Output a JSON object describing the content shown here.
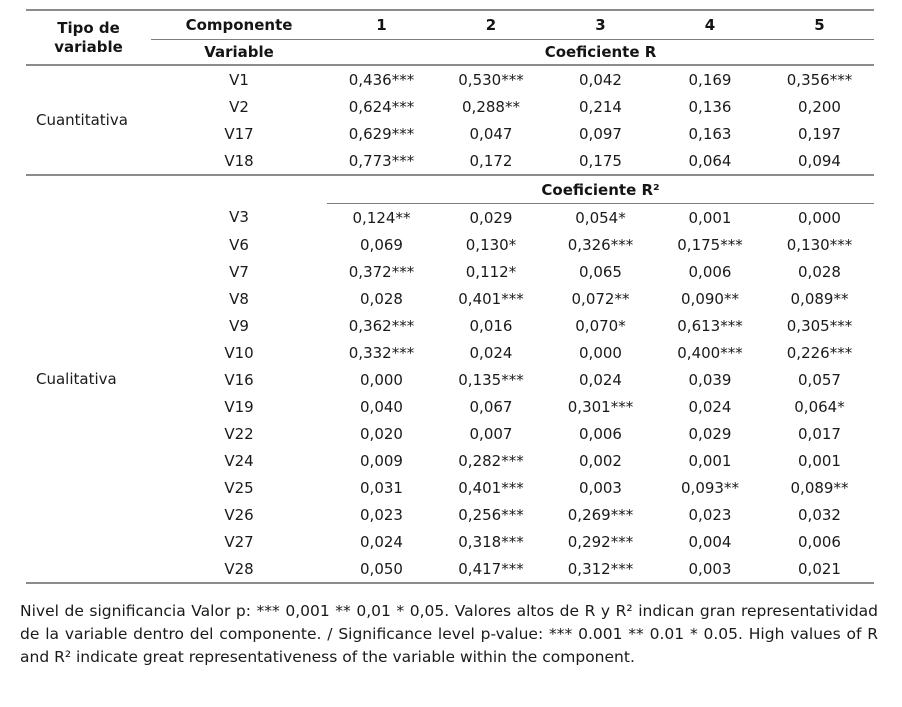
{
  "page": {
    "background": "#ffffff",
    "text_color": "#1a1a1a",
    "rule_color": "#8c8c8c"
  },
  "table": {
    "header": {
      "type_col": "Tipo de variable",
      "component_col": "Componente",
      "components": [
        "1",
        "2",
        "3",
        "4",
        "5"
      ],
      "variable_col": "Variable",
      "coef_r": "Coeficiente R"
    },
    "sections": [
      {
        "type_label": "Cuantitativa",
        "coef_header": null,
        "rows": [
          {
            "variable": "V1",
            "values": [
              "0,436***",
              "0,530***",
              "0,042",
              "0,169",
              "0,356***"
            ]
          },
          {
            "variable": "V2",
            "values": [
              "0,624***",
              "0,288**",
              "0,214",
              "0,136",
              "0,200"
            ]
          },
          {
            "variable": "V17",
            "values": [
              "0,629***",
              "0,047",
              "0,097",
              "0,163",
              "0,197"
            ]
          },
          {
            "variable": "V18",
            "values": [
              "0,773***",
              "0,172",
              "0,175",
              "0,064",
              "0,094"
            ]
          }
        ]
      },
      {
        "type_label": "Cualitativa",
        "coef_header": "Coeficiente R²",
        "rows": [
          {
            "variable": "V3",
            "values": [
              "0,124**",
              "0,029",
              "0,054*",
              "0,001",
              "0,000"
            ]
          },
          {
            "variable": "V6",
            "values": [
              "0,069",
              "0,130*",
              "0,326***",
              "0,175***",
              "0,130***"
            ]
          },
          {
            "variable": "V7",
            "values": [
              "0,372***",
              "0,112*",
              "0,065",
              "0,006",
              "0,028"
            ]
          },
          {
            "variable": "V8",
            "values": [
              "0,028",
              "0,401***",
              "0,072**",
              "0,090**",
              "0,089**"
            ]
          },
          {
            "variable": "V9",
            "values": [
              "0,362***",
              "0,016",
              "0,070*",
              "0,613***",
              "0,305***"
            ]
          },
          {
            "variable": "V10",
            "values": [
              "0,332***",
              "0,024",
              "0,000",
              "0,400***",
              "0,226***"
            ]
          },
          {
            "variable": "V16",
            "values": [
              "0,000",
              "0,135***",
              "0,024",
              "0,039",
              "0,057"
            ]
          },
          {
            "variable": "V19",
            "values": [
              "0,040",
              "0,067",
              "0,301***",
              "0,024",
              "0,064*"
            ]
          },
          {
            "variable": "V22",
            "values": [
              "0,020",
              "0,007",
              "0,006",
              "0,029",
              "0,017"
            ]
          },
          {
            "variable": "V24",
            "values": [
              "0,009",
              "0,282***",
              "0,002",
              "0,001",
              "0,001"
            ]
          },
          {
            "variable": "V25",
            "values": [
              "0,031",
              "0,401***",
              "0,003",
              "0,093**",
              "0,089**"
            ]
          },
          {
            "variable": "V26",
            "values": [
              "0,023",
              "0,256***",
              "0,269***",
              "0,023",
              "0,032"
            ]
          },
          {
            "variable": "V27",
            "values": [
              "0,024",
              "0,318***",
              "0,292***",
              "0,004",
              "0,006"
            ]
          },
          {
            "variable": "V28",
            "values": [
              "0,050",
              "0,417***",
              "0,312***",
              "0,003",
              "0,021"
            ]
          }
        ]
      }
    ]
  },
  "footnote": "Nivel de significancia Valor p: *** 0,001 ** 0,01 * 0,05. Valores altos de R y R² indican gran representatividad de la variable dentro del componente. / Significance level p-value: *** 0.001 ** 0.01 * 0.05. High values of R and R² indicate great representativeness of the variable within the component."
}
